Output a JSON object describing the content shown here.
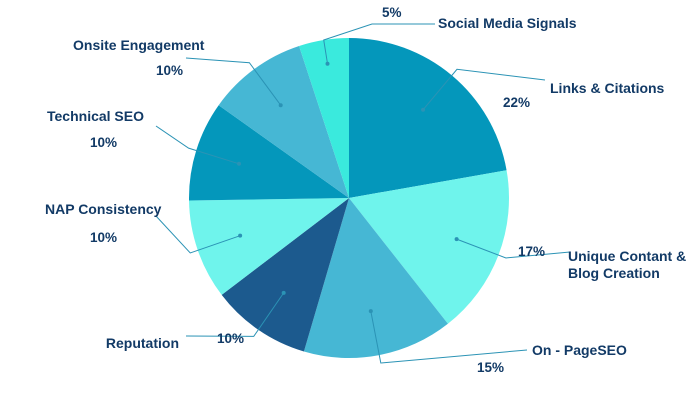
{
  "chart_data": {
    "type": "pie",
    "title": "",
    "slices": [
      {
        "label": "Links & Citations",
        "value": 22,
        "value_label": "22%",
        "color": "#0497bb"
      },
      {
        "label": "Unique Contant & Blog Creation",
        "label_lines": [
          "Unique Contant &",
          "Blog Creation"
        ],
        "value": 17,
        "value_label": "17%",
        "color": "#6ff4ec"
      },
      {
        "label": "On - PageSEO",
        "value": 15,
        "value_label": "15%",
        "color": "#46b7d4"
      },
      {
        "label": "Reputation",
        "value": 10,
        "value_label": "10%",
        "color": "#1c5a8e"
      },
      {
        "label": "NAP Consistency",
        "value": 10,
        "value_label": "10%",
        "color": "#6ff4ec"
      },
      {
        "label": "Technical SEO",
        "value": 10,
        "value_label": "10%",
        "color": "#0497bb"
      },
      {
        "label": "Onsite Engagement",
        "value": 10,
        "value_label": "10%",
        "color": "#46b7d4"
      },
      {
        "label": "Social Media Signals",
        "value": 5,
        "value_label": "5%",
        "color": "#3aeadd"
      }
    ],
    "start_angle_deg": 0,
    "direction": "clockwise",
    "legend": "none"
  }
}
